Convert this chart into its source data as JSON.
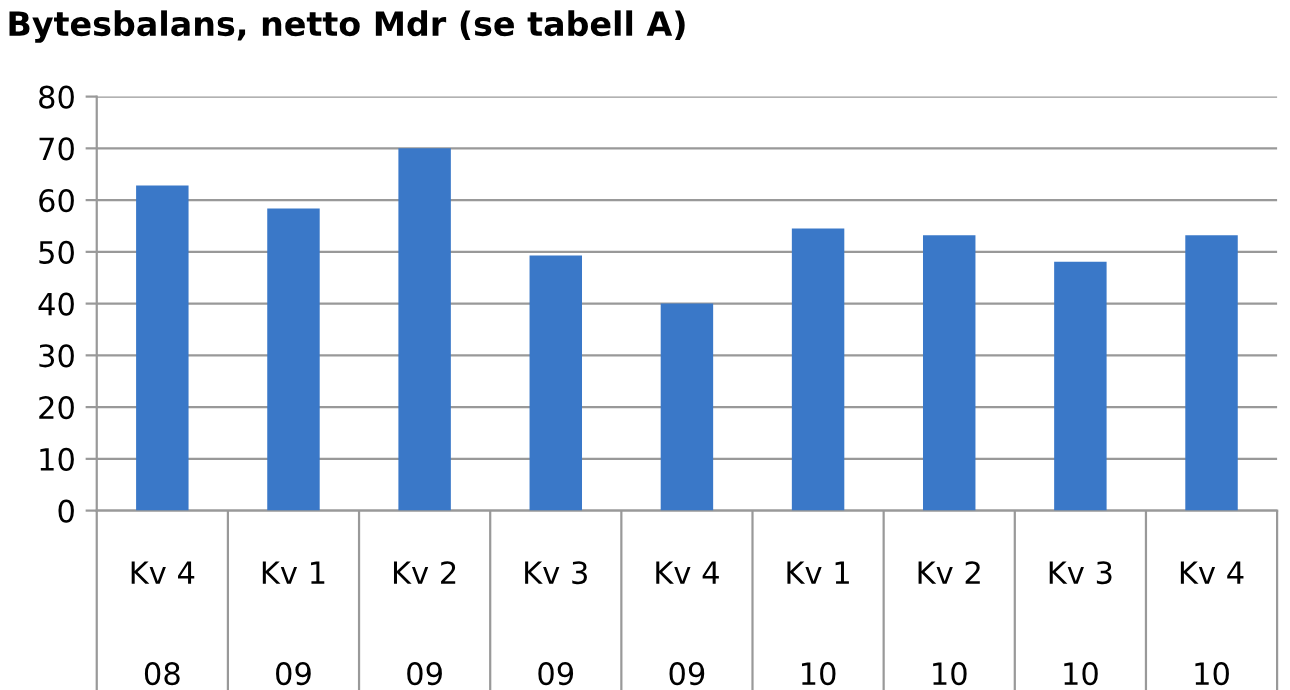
{
  "chart_data": {
    "type": "bar",
    "title": "Bytesbalans, netto Mdr (se tabell A)",
    "categories": [
      "Kv 4\n\n08",
      "Kv 1\n\n09",
      "Kv 2\n\n09",
      "Kv 3\n\n09",
      "Kv 4\n\n09",
      "Kv 1\n\n10",
      "Kv 2\n\n10",
      "Kv 3\n\n10",
      "Kv 4\n\n10"
    ],
    "values": [
      62.8,
      58.4,
      70,
      49.3,
      40,
      54.5,
      53.2,
      48.1,
      53.2
    ],
    "color": "#3a78c8",
    "ylim": [
      0,
      80
    ],
    "yticks": [
      0,
      10,
      20,
      30,
      40,
      50,
      60,
      70,
      80
    ],
    "grid": "y",
    "legend": false
  }
}
